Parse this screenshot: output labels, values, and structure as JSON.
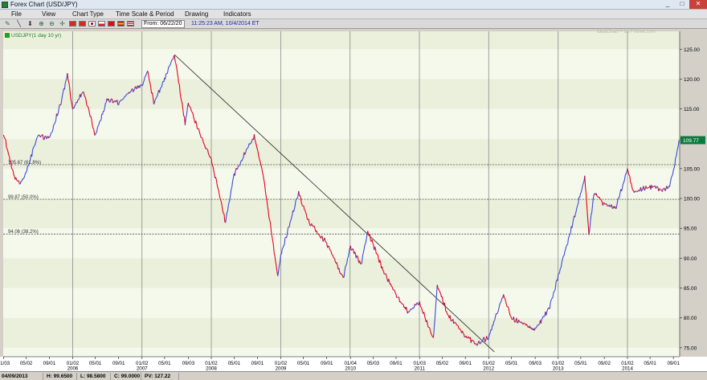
{
  "window": {
    "title": "Forex Chart (USD/JPY)",
    "minimize": "_",
    "maximize": "□",
    "close": "✕"
  },
  "menu": [
    "File",
    "View",
    "Chart Type",
    "Time Scale & Period",
    "Drawing",
    "Indicators"
  ],
  "toolbar": {
    "icons": [
      "pencil-icon",
      "line-icon",
      "arrow-icon",
      "zoom-in-icon",
      "zoom-out-icon",
      "crosshair-icon",
      "circle-icon"
    ],
    "flags": [
      {
        "name": "canada-flag-icon",
        "color": "#d52b1e"
      },
      {
        "name": "switzerland-flag-icon",
        "color": "#d52b1e"
      },
      {
        "name": "japan-flag-icon",
        "color": "#ffffff"
      },
      {
        "name": "poland-flag-icon",
        "color": "#dc143c"
      },
      {
        "name": "turkey-flag-icon",
        "color": "#e30a17"
      },
      {
        "name": "spain-flag-icon",
        "color": "#f1bf00"
      },
      {
        "name": "usa-flag-icon",
        "color": "#3c3b6e"
      }
    ],
    "range": "From: 06/22/20",
    "timestamp": "11:25:23 AM, 10/4/2014 ET"
  },
  "watermark": "IdeaChart™ by FXtrek.com",
  "status": {
    "date": "04/09/2013",
    "high": "H: 99.6500",
    "low": "L: 98.5800",
    "close": "C: 99.0000",
    "pv": "PV: 127.22"
  },
  "chart_data": {
    "type": "line",
    "legend": "USDJPY(1 day 10 yr)",
    "ylim": [
      73.5,
      128
    ],
    "y_ticks": [
      75,
      80,
      85,
      90,
      95,
      100,
      105,
      110,
      115,
      120,
      125
    ],
    "y_tick_labels": [
      "75.00",
      "80.00",
      "85.00",
      "90.00",
      "95.00",
      "100.00",
      "105.00",
      "110.00",
      "115.00",
      "120.00",
      "125.00"
    ],
    "x_ticks": [
      {
        "label": "01/03",
        "year": ""
      },
      {
        "label": "05/02",
        "year": ""
      },
      {
        "label": "09/01",
        "year": ""
      },
      {
        "label": "01/02",
        "year": "2006"
      },
      {
        "label": "05/01",
        "year": ""
      },
      {
        "label": "09/01",
        "year": ""
      },
      {
        "label": "01/02",
        "year": "2007"
      },
      {
        "label": "05/01",
        "year": ""
      },
      {
        "label": "09/03",
        "year": ""
      },
      {
        "label": "01/02",
        "year": "2008"
      },
      {
        "label": "05/01",
        "year": ""
      },
      {
        "label": "09/01",
        "year": ""
      },
      {
        "label": "01/02",
        "year": "2009"
      },
      {
        "label": "05/01",
        "year": ""
      },
      {
        "label": "09/01",
        "year": ""
      },
      {
        "label": "01/04",
        "year": "2010"
      },
      {
        "label": "05/03",
        "year": ""
      },
      {
        "label": "09/01",
        "year": ""
      },
      {
        "label": "01/03",
        "year": "2011"
      },
      {
        "label": "05/02",
        "year": ""
      },
      {
        "label": "09/01",
        "year": ""
      },
      {
        "label": "01/02",
        "year": "2012"
      },
      {
        "label": "05/01",
        "year": ""
      },
      {
        "label": "09/03",
        "year": ""
      },
      {
        "label": "01/02",
        "year": "2013"
      },
      {
        "label": "05/01",
        "year": ""
      },
      {
        "label": "09/02",
        "year": ""
      },
      {
        "label": "01/02",
        "year": "2014"
      },
      {
        "label": "05/01",
        "year": ""
      },
      {
        "label": "09/01",
        "year": ""
      }
    ],
    "year_boundaries": [
      "2006",
      "2007",
      "2008",
      "2009",
      "2010",
      "2011",
      "2012",
      "2013",
      "2014"
    ],
    "series": [
      {
        "values": [
          {
            "t": "2005-01-03",
            "v": 110.8
          },
          {
            "t": "2005-03-01",
            "v": 103.5
          },
          {
            "t": "2005-04-01",
            "v": 102.5
          },
          {
            "t": "2005-05-02",
            "v": 104.5
          },
          {
            "t": "2005-07-01",
            "v": 110.5
          },
          {
            "t": "2005-09-01",
            "v": 110.0
          },
          {
            "t": "2005-11-01",
            "v": 116.0
          },
          {
            "t": "2005-12-05",
            "v": 120.9
          },
          {
            "t": "2006-01-02",
            "v": 115.0
          },
          {
            "t": "2006-03-01",
            "v": 118.0
          },
          {
            "t": "2006-05-01",
            "v": 110.5
          },
          {
            "t": "2006-07-01",
            "v": 116.5
          },
          {
            "t": "2006-09-01",
            "v": 116.0
          },
          {
            "t": "2006-11-01",
            "v": 118.0
          },
          {
            "t": "2007-01-02",
            "v": 119.0
          },
          {
            "t": "2007-02-01",
            "v": 121.5
          },
          {
            "t": "2007-03-05",
            "v": 116.0
          },
          {
            "t": "2007-05-01",
            "v": 120.0
          },
          {
            "t": "2007-06-22",
            "v": 124.1
          },
          {
            "t": "2007-08-17",
            "v": 112.5
          },
          {
            "t": "2007-09-03",
            "v": 116.0
          },
          {
            "t": "2007-11-01",
            "v": 111.0
          },
          {
            "t": "2008-01-02",
            "v": 106.5
          },
          {
            "t": "2008-03-17",
            "v": 96.0
          },
          {
            "t": "2008-05-01",
            "v": 104.0
          },
          {
            "t": "2008-08-15",
            "v": 110.5
          },
          {
            "t": "2008-10-01",
            "v": 104.0
          },
          {
            "t": "2008-12-17",
            "v": 87.1
          },
          {
            "t": "2009-01-02",
            "v": 90.5
          },
          {
            "t": "2009-04-06",
            "v": 100.9
          },
          {
            "t": "2009-06-01",
            "v": 96.0
          },
          {
            "t": "2009-09-01",
            "v": 92.5
          },
          {
            "t": "2009-11-27",
            "v": 86.5
          },
          {
            "t": "2010-01-04",
            "v": 92.0
          },
          {
            "t": "2010-03-01",
            "v": 89.0
          },
          {
            "t": "2010-04-05",
            "v": 94.5
          },
          {
            "t": "2010-07-01",
            "v": 87.5
          },
          {
            "t": "2010-09-01",
            "v": 84.0
          },
          {
            "t": "2010-11-01",
            "v": 81.0
          },
          {
            "t": "2011-01-03",
            "v": 82.5
          },
          {
            "t": "2011-03-17",
            "v": 76.6
          },
          {
            "t": "2011-04-06",
            "v": 85.5
          },
          {
            "t": "2011-06-01",
            "v": 80.5
          },
          {
            "t": "2011-09-01",
            "v": 77.0
          },
          {
            "t": "2011-10-31",
            "v": 75.6
          },
          {
            "t": "2012-01-02",
            "v": 76.8
          },
          {
            "t": "2012-03-20",
            "v": 84.0
          },
          {
            "t": "2012-05-01",
            "v": 80.0
          },
          {
            "t": "2012-09-03",
            "v": 78.0
          },
          {
            "t": "2012-11-15",
            "v": 81.5
          },
          {
            "t": "2013-01-02",
            "v": 87.0
          },
          {
            "t": "2013-03-01",
            "v": 93.5
          },
          {
            "t": "2013-05-22",
            "v": 103.5
          },
          {
            "t": "2013-06-13",
            "v": 94.0
          },
          {
            "t": "2013-07-10",
            "v": 101.0
          },
          {
            "t": "2013-09-02",
            "v": 99.0
          },
          {
            "t": "2013-11-01",
            "v": 98.5
          },
          {
            "t": "2014-01-02",
            "v": 104.8
          },
          {
            "t": "2014-02-03",
            "v": 101.0
          },
          {
            "t": "2014-05-01",
            "v": 102.0
          },
          {
            "t": "2014-07-01",
            "v": 101.5
          },
          {
            "t": "2014-08-08",
            "v": 101.8
          },
          {
            "t": "2014-09-01",
            "v": 104.5
          },
          {
            "t": "2014-10-01",
            "v": 109.77
          }
        ]
      }
    ],
    "annotations": [
      {
        "type": "trendline",
        "from": {
          "t": "2007-06-22",
          "v": 124.1
        },
        "to": {
          "t": "2012-02-01",
          "v": 74.3
        }
      },
      {
        "type": "fib_level",
        "v": 105.67,
        "label": "105.67 (61.8%)"
      },
      {
        "type": "fib_level",
        "v": 99.87,
        "label": "99.87 (50.0%)"
      },
      {
        "type": "fib_level",
        "v": 94.06,
        "label": "94.06 (38.2%)"
      }
    ],
    "last_price": {
      "v": 109.77,
      "label": "109.77"
    },
    "colors": {
      "down": "#e8001c",
      "up": "#3b49d8",
      "band_light": "#f5f9ec",
      "band_dark": "#eaf0dc",
      "last_price_bg": "#0b7a3e"
    },
    "grid": true
  }
}
